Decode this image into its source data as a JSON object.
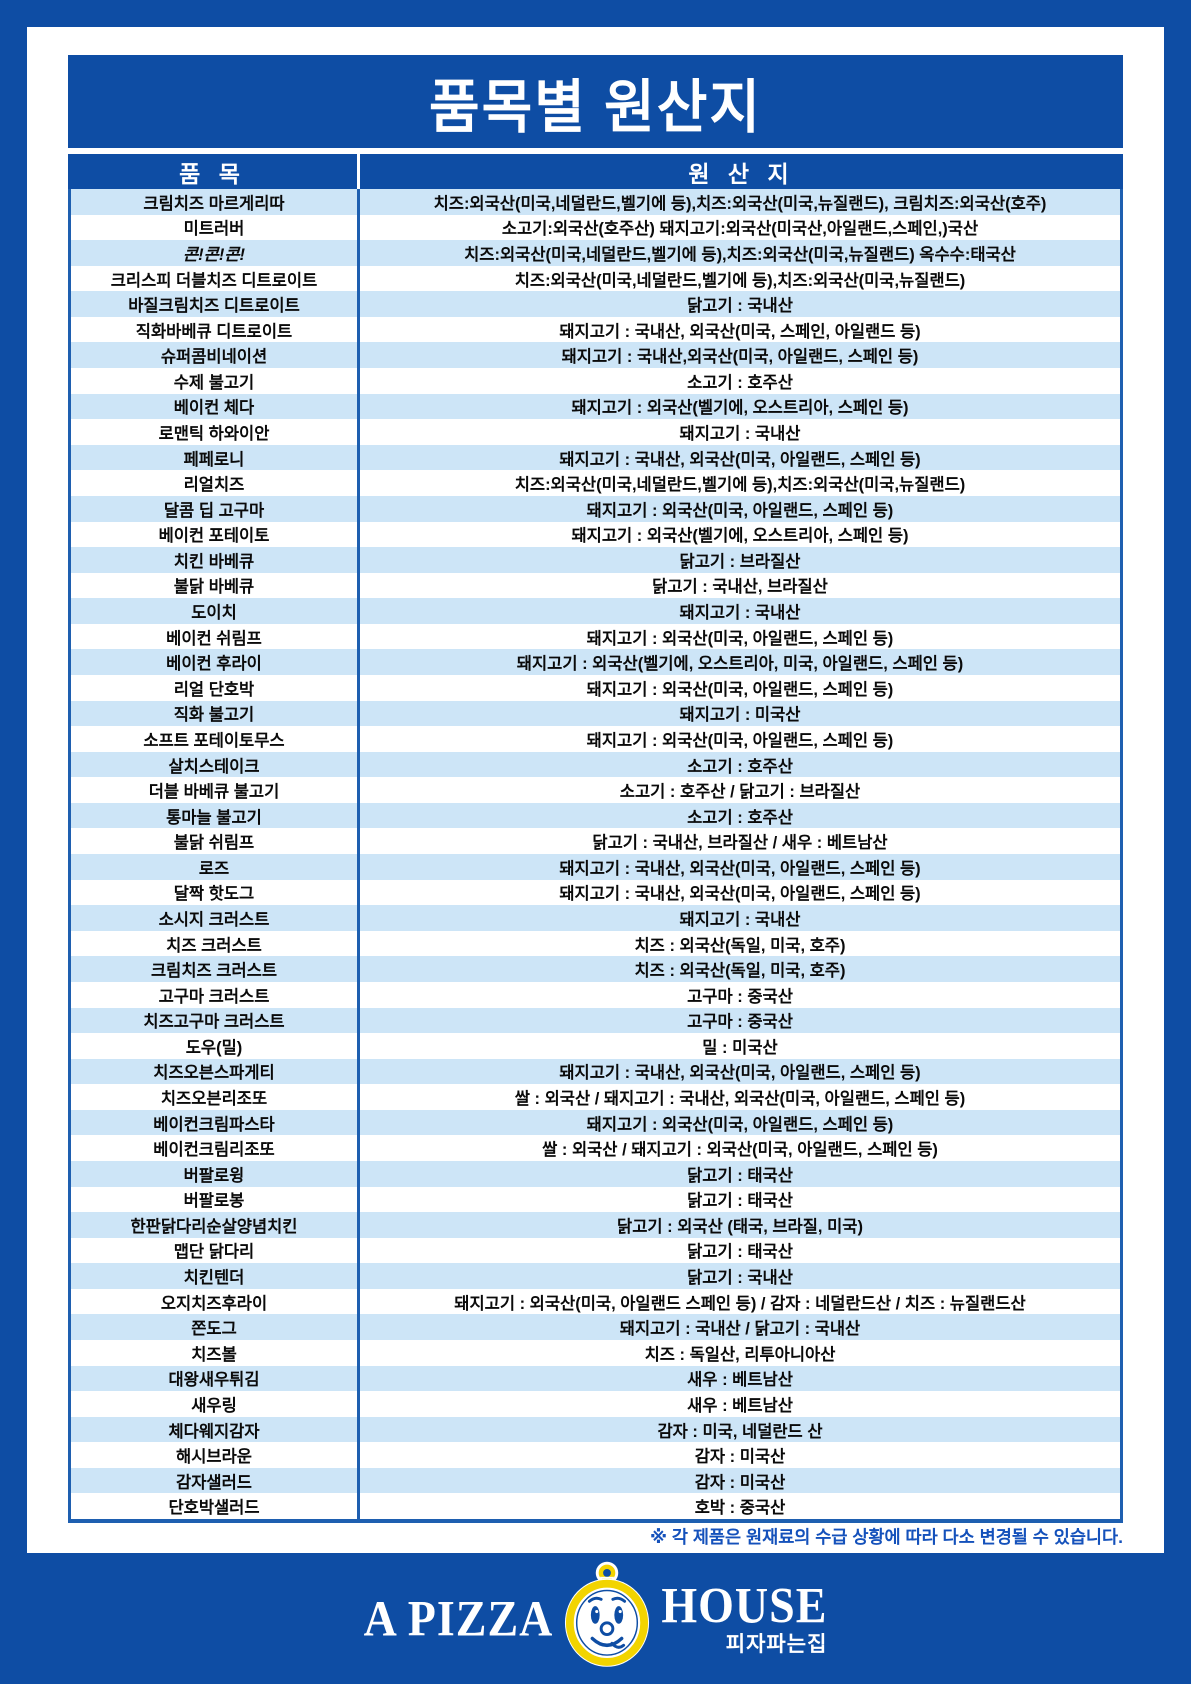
{
  "header": {
    "title": "품목별 원산지"
  },
  "table": {
    "columns": {
      "item": "품 목",
      "origin": "원 산 지"
    }
  },
  "rows": [
    {
      "item": "크림치즈 마르게리따",
      "origin": "치즈:외국산(미국,네덜란드,벨기에 등),치즈:외국산(미국,뉴질랜드), 크림치즈:외국산(호주)"
    },
    {
      "item": "미트러버",
      "origin": "소고기:외국산(호주산) 돼지고기:외국산(미국산,아일랜드,스페인,)국산"
    },
    {
      "item": "콘!콘!콘!",
      "origin": "치즈:외국산(미국,네덜란드,벨기에 등),치즈:외국산(미국,뉴질랜드) 옥수수:태국산",
      "italic": true
    },
    {
      "item": "크리스피 더블치즈 디트로이트",
      "origin": "치즈:외국산(미국,네덜란드,벨기에 등),치즈:외국산(미국,뉴질랜드)"
    },
    {
      "item": "바질크림치즈 디트로이트",
      "origin": "닭고기 : 국내산"
    },
    {
      "item": "직화바베큐 디트로이트",
      "origin": "돼지고기 : 국내산, 외국산(미국, 스페인, 아일랜드 등)"
    },
    {
      "item": "슈퍼콤비네이션",
      "origin": "돼지고기 : 국내산,외국산(미국, 아일랜드, 스페인 등)"
    },
    {
      "item": "수제 불고기",
      "origin": "소고기 : 호주산"
    },
    {
      "item": "베이컨 체다",
      "origin": "돼지고기 : 외국산(벨기에, 오스트리아, 스페인 등)"
    },
    {
      "item": "로맨틱 하와이안",
      "origin": "돼지고기 : 국내산"
    },
    {
      "item": "페페로니",
      "origin": "돼지고기 : 국내산, 외국산(미국, 아일랜드, 스페인 등)"
    },
    {
      "item": "리얼치즈",
      "origin": "치즈:외국산(미국,네덜란드,벨기에 등),치즈:외국산(미국,뉴질랜드)"
    },
    {
      "item": "달콤 딥 고구마",
      "origin": "돼지고기 : 외국산(미국, 아일랜드, 스페인 등)"
    },
    {
      "item": "베이컨 포테이토",
      "origin": "돼지고기 : 외국산(벨기에, 오스트리아, 스페인 등)"
    },
    {
      "item": "치킨 바베큐",
      "origin": "닭고기 : 브라질산"
    },
    {
      "item": "불닭 바베큐",
      "origin": "닭고기 : 국내산, 브라질산"
    },
    {
      "item": "도이치",
      "origin": "돼지고기 : 국내산"
    },
    {
      "item": "베이컨 쉬림프",
      "origin": "돼지고기 : 외국산(미국, 아일랜드, 스페인 등)"
    },
    {
      "item": "베이컨 후라이",
      "origin": "돼지고기 : 외국산(벨기에, 오스트리아, 미국, 아일랜드, 스페인 등)"
    },
    {
      "item": "리얼 단호박",
      "origin": "돼지고기 : 외국산(미국, 아일랜드, 스페인 등)"
    },
    {
      "item": "직화 불고기",
      "origin": "돼지고기 : 미국산"
    },
    {
      "item": "소프트 포테이토무스",
      "origin": "돼지고기 : 외국산(미국, 아일랜드, 스페인 등)"
    },
    {
      "item": "살치스테이크",
      "origin": "소고기 : 호주산"
    },
    {
      "item": "더블 바베큐 불고기",
      "origin": "소고기 : 호주산 / 닭고기 : 브라질산"
    },
    {
      "item": "통마늘 불고기",
      "origin": "소고기 : 호주산"
    },
    {
      "item": "불닭 쉬림프",
      "origin": "닭고기 : 국내산, 브라질산 / 새우 : 베트남산"
    },
    {
      "item": "로즈",
      "origin": "돼지고기 : 국내산, 외국산(미국, 아일랜드, 스페인 등)"
    },
    {
      "item": "달짝 핫도그",
      "origin": "돼지고기 : 국내산, 외국산(미국, 아일랜드, 스페인 등)"
    },
    {
      "item": "소시지 크러스트",
      "origin": "돼지고기 : 국내산"
    },
    {
      "item": "치즈 크러스트",
      "origin": "치즈 : 외국산(독일, 미국, 호주)"
    },
    {
      "item": "크림치즈 크러스트",
      "origin": "치즈 : 외국산(독일, 미국, 호주)"
    },
    {
      "item": "고구마 크러스트",
      "origin": "고구마 : 중국산"
    },
    {
      "item": "치즈고구마 크러스트",
      "origin": "고구마 : 중국산"
    },
    {
      "item": "도우(밀)",
      "origin": "밀 : 미국산"
    },
    {
      "item": "치즈오븐스파게티",
      "origin": "돼지고기 : 국내산, 외국산(미국, 아일랜드, 스페인 등)"
    },
    {
      "item": "치즈오븐리조또",
      "origin": "쌀 : 외국산 / 돼지고기 : 국내산, 외국산(미국, 아일랜드, 스페인 등)"
    },
    {
      "item": "베이컨크림파스타",
      "origin": "돼지고기 : 외국산(미국, 아일랜드, 스페인 등)"
    },
    {
      "item": "베이컨크림리조또",
      "origin": "쌀 : 외국산 / 돼지고기 : 외국산(미국, 아일랜드, 스페인 등)"
    },
    {
      "item": "버팔로윙",
      "origin": "닭고기 : 태국산"
    },
    {
      "item": "버팔로봉",
      "origin": "닭고기 : 태국산"
    },
    {
      "item": "한판닭다리순살양념치킨",
      "origin": "닭고기 : 외국산 (태국, 브라질, 미국)"
    },
    {
      "item": "맵단 닭다리",
      "origin": "닭고기 : 태국산"
    },
    {
      "item": "치킨텐더",
      "origin": "닭고기 : 국내산"
    },
    {
      "item": "오지치즈후라이",
      "origin": "돼지고기 : 외국산(미국, 아일랜드 스페인 등) / 감자 : 네덜란드산 / 치즈 : 뉴질랜드산"
    },
    {
      "item": "쫀도그",
      "origin": "돼지고기 : 국내산 / 닭고기 : 국내산"
    },
    {
      "item": "치즈볼",
      "origin": "치즈 : 독일산, 리투아니아산"
    },
    {
      "item": "대왕새우튀김",
      "origin": "새우 : 베트남산"
    },
    {
      "item": "새우링",
      "origin": "새우 : 베트남산"
    },
    {
      "item": "체다웨지감자",
      "origin": "감자 : 미국, 네덜란드 산"
    },
    {
      "item": "해시브라운",
      "origin": "감자 : 미국산"
    },
    {
      "item": "감자샐러드",
      "origin": "감자 : 미국산"
    },
    {
      "item": "단호박샐러드",
      "origin": "호박 : 중국산"
    }
  ],
  "footnote": "※ 각 제품은 원재료의 수급 상황에 따라 다소 변경될 수 있습니다.",
  "logo": {
    "left": "A PIZZA",
    "right": "HOUSE",
    "subtitle": "피자파는집",
    "mascot": "pizza-boy-face-icon"
  },
  "colors": {
    "background_blue": "#0e4da4",
    "banner_blue": "#0e4da4",
    "row_stripe_blue": "#cde5f7",
    "table_border_blue": "#1e5fb0",
    "footnote_blue": "#1451bb",
    "logo_yellow": "#f2d400",
    "body_text": "#0a0a0a"
  }
}
